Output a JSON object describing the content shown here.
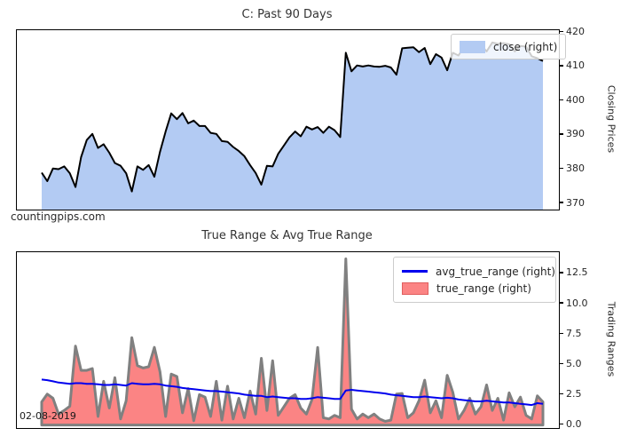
{
  "watermark": "countingpips.com",
  "annotation_date": "02-08-2019",
  "colors": {
    "close_fill": "#b3cbf3",
    "close_line": "#000000",
    "true_range_fill": "#fb8484",
    "true_range_edge": "#808080",
    "avg_true_range_line": "#0000ee",
    "frame": "#000000",
    "text": "#262626"
  },
  "chart_data": [
    {
      "type": "area",
      "title": "C: Past 90 Days",
      "ylabel": "Closing Prices",
      "ylabel_side": "right",
      "xlabel": "",
      "x_count": 90,
      "grid": false,
      "ylim": [
        368.2,
        420.6
      ],
      "yticks": [
        370,
        380,
        390,
        400,
        410,
        420
      ],
      "ytick_labels": [
        "370",
        "380",
        "390",
        "400",
        "410",
        "420"
      ],
      "legend_position": "upper right",
      "legend": [
        {
          "label": "close (right)",
          "swatch": "area-blue"
        }
      ],
      "series": [
        {
          "name": "close",
          "type": "area",
          "fill_color": "#b3cbf3",
          "line_color": "#000000",
          "line_width": 2,
          "baseline": 368.2,
          "values": [
            379.0,
            376.5,
            380.2,
            380.0,
            380.8,
            378.8,
            374.8,
            383.5,
            388.5,
            390.3,
            386.2,
            387.3,
            384.8,
            381.8,
            381.0,
            378.8,
            373.5,
            380.8,
            379.8,
            381.2,
            377.8,
            385.0,
            391.0,
            396.3,
            394.6,
            396.4,
            393.4,
            394.2,
            392.6,
            392.6,
            390.6,
            390.3,
            388.2,
            388.0,
            386.5,
            385.3,
            383.8,
            381.2,
            378.9,
            375.5,
            381.0,
            380.8,
            384.5,
            386.9,
            389.3,
            391.0,
            389.6,
            392.4,
            391.6,
            392.3,
            390.6,
            392.4,
            391.4,
            389.4,
            414.0,
            408.6,
            410.3,
            410.0,
            410.3,
            410.0,
            409.9,
            410.2,
            409.7,
            407.6,
            415.3,
            415.5,
            415.6,
            414.2,
            415.4,
            410.7,
            413.6,
            412.6,
            408.9,
            414.0,
            413.2,
            415.8,
            416.7,
            414.9,
            416.4,
            414.4,
            417.0,
            416.6,
            416.8,
            416.5,
            414.4,
            416.0,
            415.8,
            413.0,
            412.4,
            411.6
          ]
        }
      ]
    },
    {
      "type": "area",
      "title": "True Range & Avg True Range",
      "ylabel": "Trading Ranges",
      "ylabel_side": "right",
      "xlabel": "",
      "x_count": 90,
      "grid": false,
      "ylim": [
        -0.25,
        14.25
      ],
      "yticks": [
        0.0,
        2.5,
        5.0,
        7.5,
        10.0,
        12.5
      ],
      "ytick_labels": [
        "0.0",
        "2.5",
        "5.0",
        "7.5",
        "10.0",
        "12.5"
      ],
      "legend_position": "upper right",
      "legend": [
        {
          "label": "avg_true_range (right)",
          "swatch": "line-blue"
        },
        {
          "label": "true_range (right)",
          "swatch": "area-red"
        }
      ],
      "series": [
        {
          "name": "true_range",
          "type": "area",
          "fill_color": "#fb8484",
          "edge_color": "#808080",
          "edge_width": 3,
          "baseline": 0,
          "values": [
            1.9,
            2.55,
            2.2,
            0.9,
            1.2,
            1.55,
            6.5,
            4.5,
            4.5,
            4.65,
            0.7,
            3.6,
            1.4,
            3.9,
            0.5,
            2.0,
            7.2,
            4.9,
            4.7,
            4.8,
            6.4,
            4.4,
            0.7,
            4.2,
            4.0,
            1.0,
            3.0,
            0.35,
            2.5,
            2.3,
            0.7,
            3.6,
            0.4,
            3.2,
            0.5,
            2.2,
            0.6,
            2.8,
            0.9,
            5.5,
            1.2,
            5.3,
            0.8,
            1.5,
            2.2,
            2.5,
            1.4,
            0.9,
            2.1,
            6.4,
            0.6,
            0.5,
            0.8,
            0.6,
            13.7,
            1.3,
            0.5,
            0.9,
            0.6,
            0.9,
            0.5,
            0.3,
            0.4,
            2.55,
            2.6,
            0.6,
            1.0,
            2.0,
            3.7,
            1.0,
            2.0,
            0.6,
            4.1,
            2.7,
            0.5,
            1.2,
            2.2,
            0.9,
            1.5,
            3.3,
            1.2,
            2.2,
            0.4,
            2.65,
            1.5,
            2.3,
            0.8,
            0.5,
            2.4,
            1.9
          ]
        },
        {
          "name": "avg_true_range",
          "type": "line",
          "line_color": "#0000ee",
          "line_width": 2,
          "values": [
            3.75,
            3.7,
            3.6,
            3.5,
            3.45,
            3.4,
            3.45,
            3.45,
            3.4,
            3.4,
            3.35,
            3.3,
            3.3,
            3.35,
            3.3,
            3.25,
            3.45,
            3.4,
            3.35,
            3.35,
            3.4,
            3.35,
            3.25,
            3.2,
            3.15,
            3.05,
            3.0,
            2.95,
            2.9,
            2.85,
            2.8,
            2.8,
            2.75,
            2.7,
            2.65,
            2.6,
            2.5,
            2.45,
            2.4,
            2.4,
            2.3,
            2.35,
            2.3,
            2.25,
            2.2,
            2.2,
            2.15,
            2.15,
            2.2,
            2.3,
            2.25,
            2.2,
            2.15,
            2.15,
            2.85,
            2.9,
            2.85,
            2.8,
            2.75,
            2.7,
            2.65,
            2.6,
            2.5,
            2.45,
            2.4,
            2.35,
            2.3,
            2.3,
            2.35,
            2.3,
            2.25,
            2.2,
            2.25,
            2.2,
            2.1,
            2.05,
            2.0,
            1.95,
            1.95,
            2.0,
            1.95,
            1.9,
            1.85,
            1.85,
            1.8,
            1.75,
            1.7,
            1.65,
            1.8,
            1.75
          ]
        }
      ]
    }
  ]
}
